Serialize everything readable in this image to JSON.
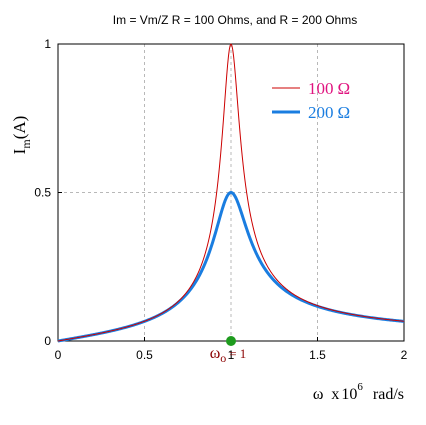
{
  "chart_data": {
    "type": "line",
    "title": "Im = Vm/Z  R = 100 Ohms, and R = 200 Ohms",
    "ylabel": {
      "main": "I",
      "sub": "m",
      "rest": "(A)"
    },
    "xlabel": {
      "omega": "ω",
      "times": "x",
      "base": "10",
      "exp": "6",
      "unit": "rad/s"
    },
    "xlim": [
      0,
      2
    ],
    "ylim": [
      0,
      1
    ],
    "xticks": [
      0,
      0.5,
      1,
      1.5,
      2
    ],
    "xtick_labels": [
      "0",
      "0.5",
      "1",
      "1.5",
      "2"
    ],
    "yticks": [
      0,
      0.5,
      1
    ],
    "ytick_labels": [
      "0",
      "0.5",
      "1"
    ],
    "grid": true,
    "legend_position": "top-right",
    "series": [
      {
        "name": "100 Ω",
        "label_num": "100",
        "label_unit": "Ω",
        "color": "#cc0000",
        "text_color": "#e0137f",
        "R": 100,
        "x": [
          0,
          0.1,
          0.2,
          0.3,
          0.4,
          0.5,
          0.6,
          0.7,
          0.8,
          0.85,
          0.9,
          0.93,
          0.95,
          0.97,
          0.98,
          0.99,
          1.0,
          1.01,
          1.02,
          1.03,
          1.05,
          1.07,
          1.1,
          1.15,
          1.2,
          1.3,
          1.4,
          1.5,
          1.6,
          1.7,
          1.8,
          1.9,
          2.0
        ],
        "y": [
          0,
          0.0101,
          0.0208,
          0.0329,
          0.0476,
          0.0667,
          0.0937,
          0.137,
          0.217,
          0.292,
          0.427,
          0.561,
          0.668,
          0.804,
          0.876,
          0.943,
          0.98,
          0.953,
          0.89,
          0.816,
          0.69,
          0.586,
          0.474,
          0.36,
          0.29,
          0.202,
          0.155,
          0.125,
          0.104,
          0.0896,
          0.0785,
          0.0699,
          0.0629
        ]
      },
      {
        "name": "200 Ω",
        "label_num": "200",
        "label_unit": "Ω",
        "color": "#1a7de0",
        "text_color": "#1a7de0",
        "R": 200,
        "x": [
          0,
          0.1,
          0.2,
          0.3,
          0.4,
          0.5,
          0.6,
          0.7,
          0.8,
          0.85,
          0.9,
          0.93,
          0.95,
          0.97,
          0.98,
          0.99,
          1.0,
          1.01,
          1.02,
          1.03,
          1.05,
          1.07,
          1.1,
          1.15,
          1.2,
          1.3,
          1.4,
          1.5,
          1.6,
          1.7,
          1.8,
          1.9,
          2.0
        ],
        "y": [
          0,
          0.0101,
          0.0208,
          0.0328,
          0.0474,
          0.0662,
          0.0917,
          0.131,
          0.199,
          0.256,
          0.344,
          0.408,
          0.446,
          0.478,
          0.489,
          0.496,
          0.5,
          0.497,
          0.49,
          0.479,
          0.456,
          0.429,
          0.387,
          0.327,
          0.277,
          0.198,
          0.153,
          0.124,
          0.104,
          0.0893,
          0.0783,
          0.0698,
          0.0629
        ]
      }
    ],
    "annotation": {
      "omega": "ω",
      "sub": "o",
      "text": "= 1",
      "x": 1,
      "y": 0,
      "marker_color": "#1e9b1e",
      "text_color": "#8b0000"
    }
  }
}
